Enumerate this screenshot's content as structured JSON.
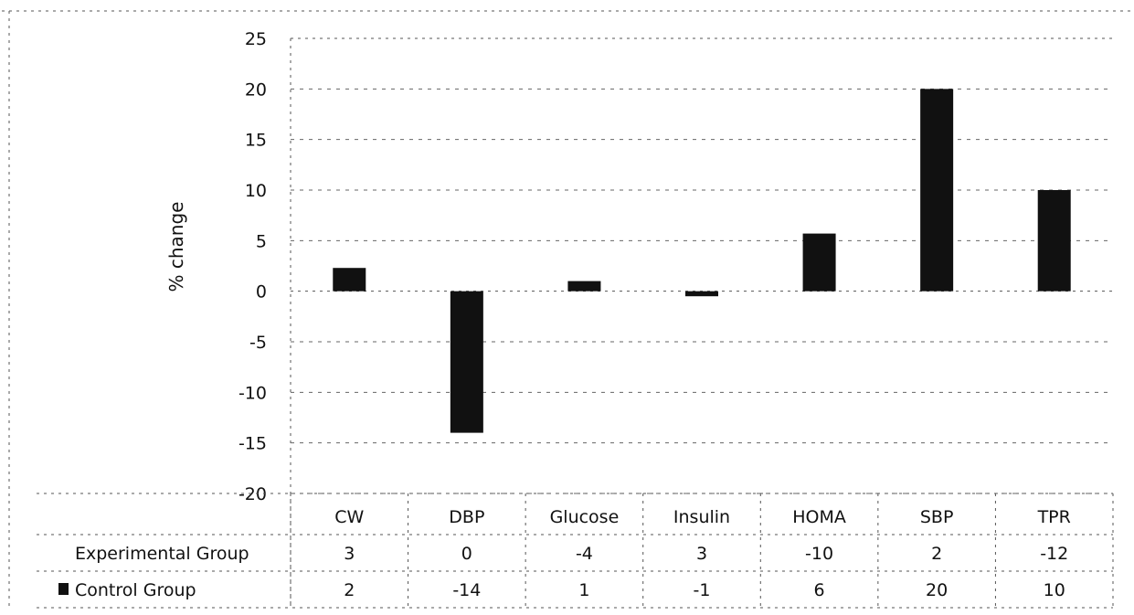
{
  "chart_data": {
    "type": "bar",
    "title": "",
    "xlabel": "",
    "ylabel": "% change",
    "ylim": [
      -20,
      25
    ],
    "yticks": [
      25,
      20,
      15,
      10,
      5,
      0,
      -5,
      -10,
      -15,
      -20
    ],
    "yticks_text": [
      "25",
      "20",
      "15",
      "10",
      "5",
      "0",
      "-5",
      "-10",
      "-15",
      "-20"
    ],
    "categories": [
      "CW",
      "DBP",
      "Glucose",
      "Insulin",
      "HOMA",
      "SBP",
      "TPR"
    ],
    "grid": true,
    "series": [
      {
        "name": "Experimental Group",
        "values": [
          3,
          0,
          -4,
          3,
          -10,
          2,
          -12
        ],
        "table_text": [
          "3",
          "0",
          "-4",
          "3",
          "-10",
          "2",
          "-12"
        ],
        "color": "#ffffff",
        "legend_marker": false
      },
      {
        "name": "Control Group",
        "values": [
          2.3,
          -14,
          1,
          -0.5,
          5.7,
          20,
          10
        ],
        "table_text": [
          "2",
          "-14",
          "1",
          "-1",
          "6",
          "20",
          "10"
        ],
        "color": "#111111",
        "legend_marker": true
      }
    ]
  }
}
